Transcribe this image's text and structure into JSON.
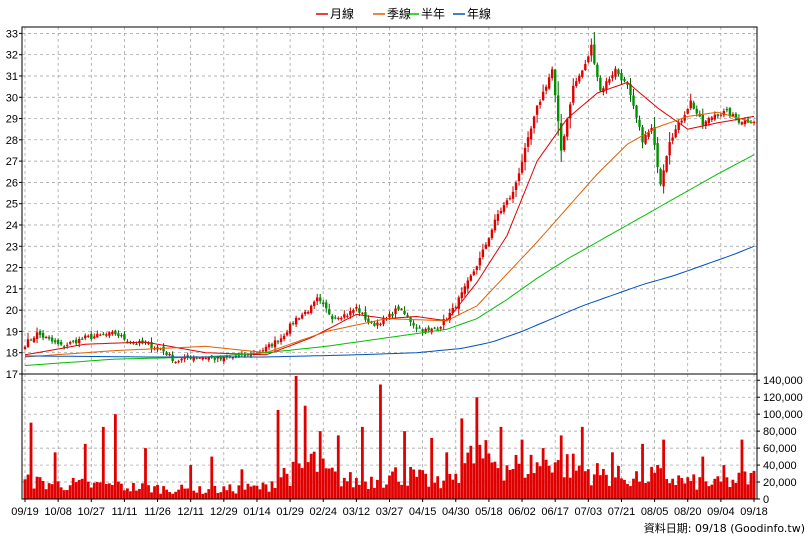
{
  "chart_data": {
    "type": "candlestick",
    "legend": [
      {
        "name": "月線",
        "color": "#e00000"
      },
      {
        "name": "季線",
        "color": "#e06000"
      },
      {
        "name": "半年",
        "color": "#00c000"
      },
      {
        "name": "年線",
        "color": "#0050c0"
      }
    ],
    "price_axis": {
      "ticks": [
        17,
        18,
        19,
        20,
        21,
        22,
        23,
        24,
        25,
        26,
        27,
        28,
        29,
        30,
        31,
        32,
        33
      ],
      "ylim": [
        17,
        33.3
      ]
    },
    "volume_axis": {
      "ticks": [
        "0",
        "20,000",
        "40,000",
        "60,000",
        "80,000",
        "100,000",
        "120,000",
        "140,000"
      ],
      "ylim": [
        0,
        145000
      ]
    },
    "x_ticks": [
      "09/19",
      "10/08",
      "10/27",
      "11/11",
      "11/26",
      "12/11",
      "12/29",
      "01/14",
      "01/29",
      "02/24",
      "03/12",
      "03/27",
      "04/15",
      "04/30",
      "05/18",
      "06/02",
      "06/17",
      "07/03",
      "07/21",
      "08/05",
      "08/20",
      "09/04",
      "09/18"
    ],
    "num_days": 243,
    "close_anchors": [
      [
        0,
        18.4
      ],
      [
        4,
        18.9
      ],
      [
        8,
        18.6
      ],
      [
        12,
        18.3
      ],
      [
        16,
        18.5
      ],
      [
        20,
        18.7
      ],
      [
        25,
        18.8
      ],
      [
        30,
        18.9
      ],
      [
        35,
        18.5
      ],
      [
        40,
        18.4
      ],
      [
        45,
        18.2
      ],
      [
        50,
        17.6
      ],
      [
        55,
        17.8
      ],
      [
        60,
        17.8
      ],
      [
        65,
        17.7
      ],
      [
        70,
        17.8
      ],
      [
        75,
        17.9
      ],
      [
        80,
        18.2
      ],
      [
        85,
        18.7
      ],
      [
        90,
        19.6
      ],
      [
        95,
        20.1
      ],
      [
        97,
        20.5
      ],
      [
        102,
        19.7
      ],
      [
        107,
        19.8
      ],
      [
        110,
        20.1
      ],
      [
        115,
        19.3
      ],
      [
        120,
        19.6
      ],
      [
        124,
        20.1
      ],
      [
        130,
        19.2
      ],
      [
        134,
        19.0
      ],
      [
        138,
        19.3
      ],
      [
        142,
        20.0
      ],
      [
        146,
        21.0
      ],
      [
        151,
        22.4
      ],
      [
        157,
        24.5
      ],
      [
        162,
        25.5
      ],
      [
        166,
        27.5
      ],
      [
        170,
        29.5
      ],
      [
        175,
        31.3
      ],
      [
        178,
        27.5
      ],
      [
        182,
        30.5
      ],
      [
        186,
        31.5
      ],
      [
        188,
        32.4
      ],
      [
        191,
        30.3
      ],
      [
        196,
        31.3
      ],
      [
        200,
        30.5
      ],
      [
        205,
        28.0
      ],
      [
        208,
        28.5
      ],
      [
        211,
        26.0
      ],
      [
        214,
        28.0
      ],
      [
        217,
        28.7
      ],
      [
        221,
        29.8
      ],
      [
        225,
        28.7
      ],
      [
        229,
        29.2
      ],
      [
        233,
        29.3
      ],
      [
        237,
        28.9
      ],
      [
        242,
        28.9
      ]
    ],
    "moving_averages": {
      "月線": [
        [
          0,
          17.9
        ],
        [
          20,
          18.4
        ],
        [
          40,
          18.5
        ],
        [
          60,
          18.0
        ],
        [
          80,
          17.9
        ],
        [
          95,
          18.7
        ],
        [
          110,
          19.8
        ],
        [
          120,
          19.6
        ],
        [
          130,
          19.7
        ],
        [
          140,
          19.5
        ],
        [
          150,
          21.3
        ],
        [
          160,
          23.5
        ],
        [
          170,
          27.0
        ],
        [
          180,
          29.0
        ],
        [
          190,
          30.2
        ],
        [
          200,
          30.7
        ],
        [
          210,
          29.5
        ],
        [
          220,
          28.5
        ],
        [
          230,
          28.8
        ],
        [
          242,
          29.1
        ]
      ],
      "季線": [
        [
          0,
          17.8
        ],
        [
          30,
          18.1
        ],
        [
          60,
          18.3
        ],
        [
          80,
          18.0
        ],
        [
          100,
          19.0
        ],
        [
          120,
          19.6
        ],
        [
          140,
          19.5
        ],
        [
          150,
          20.2
        ],
        [
          160,
          21.7
        ],
        [
          170,
          23.2
        ],
        [
          180,
          24.8
        ],
        [
          190,
          26.4
        ],
        [
          200,
          27.8
        ],
        [
          210,
          28.6
        ],
        [
          220,
          29.1
        ],
        [
          230,
          29.3
        ],
        [
          242,
          28.8
        ]
      ],
      "半年": [
        [
          0,
          17.4
        ],
        [
          30,
          17.7
        ],
        [
          60,
          17.8
        ],
        [
          80,
          18.0
        ],
        [
          100,
          18.3
        ],
        [
          120,
          18.7
        ],
        [
          140,
          19.1
        ],
        [
          150,
          19.6
        ],
        [
          160,
          20.5
        ],
        [
          170,
          21.5
        ],
        [
          180,
          22.4
        ],
        [
          190,
          23.2
        ],
        [
          200,
          24.0
        ],
        [
          210,
          24.8
        ],
        [
          220,
          25.6
        ],
        [
          230,
          26.4
        ],
        [
          242,
          27.3
        ]
      ],
      "年線": [
        [
          0,
          17.85
        ],
        [
          40,
          17.8
        ],
        [
          80,
          17.8
        ],
        [
          110,
          17.9
        ],
        [
          130,
          18.0
        ],
        [
          145,
          18.2
        ],
        [
          155,
          18.5
        ],
        [
          165,
          19.0
        ],
        [
          175,
          19.6
        ],
        [
          185,
          20.2
        ],
        [
          195,
          20.7
        ],
        [
          205,
          21.2
        ],
        [
          215,
          21.6
        ],
        [
          225,
          22.1
        ],
        [
          235,
          22.6
        ],
        [
          242,
          23.0
        ]
      ]
    },
    "volume_baseline": [
      [
        0,
        20000
      ],
      [
        30,
        15000
      ],
      [
        60,
        10000
      ],
      [
        80,
        14000
      ],
      [
        85,
        30000
      ],
      [
        90,
        30000
      ],
      [
        95,
        45000
      ],
      [
        100,
        30000
      ],
      [
        110,
        20000
      ],
      [
        120,
        25000
      ],
      [
        125,
        30000
      ],
      [
        140,
        15000
      ],
      [
        145,
        40000
      ],
      [
        150,
        50000
      ],
      [
        160,
        40000
      ],
      [
        170,
        40000
      ],
      [
        175,
        50000
      ],
      [
        180,
        40000
      ],
      [
        190,
        30000
      ],
      [
        200,
        25000
      ],
      [
        210,
        28000
      ],
      [
        220,
        20000
      ],
      [
        230,
        18000
      ],
      [
        242,
        25000
      ]
    ],
    "volume_spikes": [
      [
        2,
        90000
      ],
      [
        10,
        55000
      ],
      [
        20,
        65000
      ],
      [
        26,
        85000
      ],
      [
        30,
        100000
      ],
      [
        40,
        60000
      ],
      [
        55,
        40000
      ],
      [
        62,
        50000
      ],
      [
        72,
        35000
      ],
      [
        84,
        105000
      ],
      [
        90,
        145000
      ],
      [
        93,
        110000
      ],
      [
        98,
        80000
      ],
      [
        104,
        75000
      ],
      [
        112,
        85000
      ],
      [
        118,
        135000
      ],
      [
        126,
        80000
      ],
      [
        135,
        72000
      ],
      [
        140,
        55000
      ],
      [
        145,
        95000
      ],
      [
        150,
        120000
      ],
      [
        158,
        85000
      ],
      [
        165,
        70000
      ],
      [
        172,
        60000
      ],
      [
        178,
        75000
      ],
      [
        185,
        85000
      ],
      [
        195,
        55000
      ],
      [
        205,
        65000
      ],
      [
        212,
        70000
      ],
      [
        225,
        50000
      ],
      [
        232,
        40000
      ],
      [
        238,
        70000
      ]
    ],
    "source": "資料日期: 09/18  (Goodinfo.tw)"
  }
}
